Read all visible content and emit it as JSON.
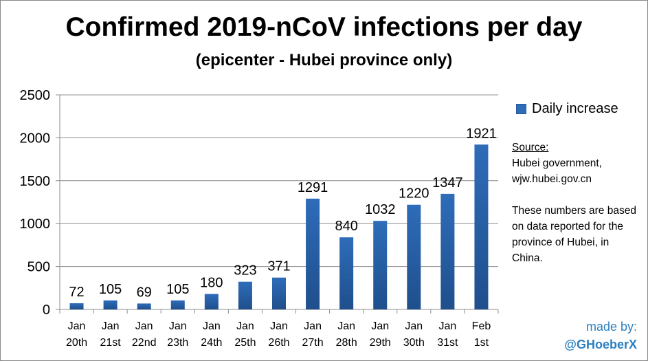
{
  "chart_data": {
    "type": "bar",
    "title": "Confirmed 2019-nCoV infections per day",
    "subtitle": "(epicenter - Hubei province only)",
    "categories": [
      [
        "Jan",
        "20th"
      ],
      [
        "Jan",
        "21st"
      ],
      [
        "Jan",
        "22nd"
      ],
      [
        "Jan",
        "23th"
      ],
      [
        "Jan",
        "24th"
      ],
      [
        "Jan",
        "25th"
      ],
      [
        "Jan",
        "26th"
      ],
      [
        "Jan",
        "27th"
      ],
      [
        "Jan",
        "28th"
      ],
      [
        "Jan",
        "29th"
      ],
      [
        "Jan",
        "30th"
      ],
      [
        "Jan",
        "31st"
      ],
      [
        "Feb",
        "1st"
      ]
    ],
    "series": [
      {
        "name": "Daily increase",
        "values": [
          72,
          105,
          69,
          105,
          180,
          323,
          371,
          1291,
          840,
          1032,
          1220,
          1347,
          1921
        ]
      }
    ],
    "ylim": [
      0,
      2500
    ],
    "yticks": [
      0,
      500,
      1000,
      1500,
      2000,
      2500
    ],
    "grid": true,
    "legend": "right",
    "colors": {
      "bar": "#2e6cb9",
      "bar_dark": "#1f4f8c",
      "grid": "#8c8c8c"
    }
  },
  "source": {
    "label": "Source:",
    "lines": [
      "Hubei government,",
      "wjw.hubei.gov.cn"
    ],
    "note": "These numbers are based on data reported for the province of Hubei, in China."
  },
  "credit": {
    "made_by": "made by:",
    "handle": "@GHoeberX"
  }
}
